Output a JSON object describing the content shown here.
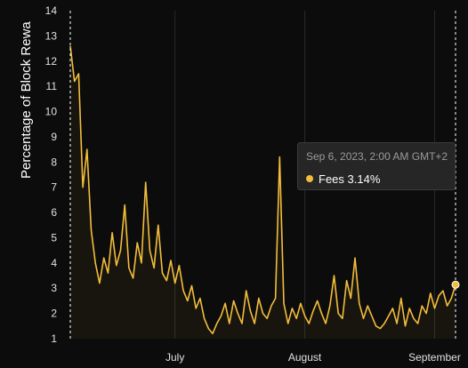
{
  "chart_data": {
    "type": "line",
    "title": "",
    "ylabel": "Percentage of Block Rewa",
    "xlabel": "",
    "ylim": [
      1,
      14
    ],
    "y_ticks": [
      "1",
      "2",
      "3",
      "4",
      "5",
      "6",
      "7",
      "8",
      "9",
      "10",
      "11",
      "12",
      "13",
      "14"
    ],
    "x_ticks": [
      {
        "label": "July",
        "date": "2023-07-01"
      },
      {
        "label": "August",
        "date": "2023-08-01"
      },
      {
        "label": "September",
        "date": "2023-09-01"
      }
    ],
    "x_range": [
      "2023-06-06",
      "2023-09-06"
    ],
    "grid": "vertical",
    "series": [
      {
        "name": "Fees",
        "color": "#f3bd3b",
        "points": [
          [
            "2023-06-06",
            12.6
          ],
          [
            "2023-06-07",
            11.2
          ],
          [
            "2023-06-08",
            11.5
          ],
          [
            "2023-06-09",
            7.0
          ],
          [
            "2023-06-10",
            8.5
          ],
          [
            "2023-06-11",
            5.3
          ],
          [
            "2023-06-12",
            4.0
          ],
          [
            "2023-06-13",
            3.2
          ],
          [
            "2023-06-14",
            4.2
          ],
          [
            "2023-06-15",
            3.6
          ],
          [
            "2023-06-16",
            5.2
          ],
          [
            "2023-06-17",
            3.9
          ],
          [
            "2023-06-18",
            4.5
          ],
          [
            "2023-06-19",
            6.3
          ],
          [
            "2023-06-20",
            3.8
          ],
          [
            "2023-06-21",
            3.4
          ],
          [
            "2023-06-22",
            4.8
          ],
          [
            "2023-06-23",
            4.0
          ],
          [
            "2023-06-24",
            7.2
          ],
          [
            "2023-06-25",
            4.5
          ],
          [
            "2023-06-26",
            3.8
          ],
          [
            "2023-06-27",
            5.5
          ],
          [
            "2023-06-28",
            3.6
          ],
          [
            "2023-06-29",
            3.3
          ],
          [
            "2023-06-30",
            4.1
          ],
          [
            "2023-07-01",
            3.2
          ],
          [
            "2023-07-02",
            3.9
          ],
          [
            "2023-07-03",
            2.9
          ],
          [
            "2023-07-04",
            2.5
          ],
          [
            "2023-07-05",
            3.1
          ],
          [
            "2023-07-06",
            2.2
          ],
          [
            "2023-07-07",
            2.6
          ],
          [
            "2023-07-08",
            1.8
          ],
          [
            "2023-07-09",
            1.4
          ],
          [
            "2023-07-10",
            1.2
          ],
          [
            "2023-07-11",
            1.6
          ],
          [
            "2023-07-12",
            1.9
          ],
          [
            "2023-07-13",
            2.4
          ],
          [
            "2023-07-14",
            1.6
          ],
          [
            "2023-07-15",
            2.5
          ],
          [
            "2023-07-16",
            2.0
          ],
          [
            "2023-07-17",
            1.6
          ],
          [
            "2023-07-18",
            2.9
          ],
          [
            "2023-07-19",
            2.1
          ],
          [
            "2023-07-20",
            1.6
          ],
          [
            "2023-07-21",
            2.6
          ],
          [
            "2023-07-22",
            2.0
          ],
          [
            "2023-07-23",
            1.8
          ],
          [
            "2023-07-24",
            2.3
          ],
          [
            "2023-07-25",
            2.6
          ],
          [
            "2023-07-26",
            8.2
          ],
          [
            "2023-07-27",
            2.4
          ],
          [
            "2023-07-28",
            1.6
          ],
          [
            "2023-07-29",
            2.2
          ],
          [
            "2023-07-30",
            1.8
          ],
          [
            "2023-07-31",
            2.4
          ],
          [
            "2023-08-01",
            1.9
          ],
          [
            "2023-08-02",
            1.6
          ],
          [
            "2023-08-03",
            2.1
          ],
          [
            "2023-08-04",
            2.5
          ],
          [
            "2023-08-05",
            2.0
          ],
          [
            "2023-08-06",
            1.6
          ],
          [
            "2023-08-07",
            2.3
          ],
          [
            "2023-08-08",
            3.5
          ],
          [
            "2023-08-09",
            2.0
          ],
          [
            "2023-08-10",
            1.8
          ],
          [
            "2023-08-11",
            3.3
          ],
          [
            "2023-08-12",
            2.6
          ],
          [
            "2023-08-13",
            4.2
          ],
          [
            "2023-08-14",
            2.4
          ],
          [
            "2023-08-15",
            1.8
          ],
          [
            "2023-08-16",
            2.3
          ],
          [
            "2023-08-17",
            1.9
          ],
          [
            "2023-08-18",
            1.5
          ],
          [
            "2023-08-19",
            1.4
          ],
          [
            "2023-08-20",
            1.6
          ],
          [
            "2023-08-21",
            1.9
          ],
          [
            "2023-08-22",
            2.2
          ],
          [
            "2023-08-23",
            1.6
          ],
          [
            "2023-08-24",
            2.6
          ],
          [
            "2023-08-25",
            1.5
          ],
          [
            "2023-08-26",
            2.2
          ],
          [
            "2023-08-27",
            1.8
          ],
          [
            "2023-08-28",
            1.6
          ],
          [
            "2023-08-29",
            2.3
          ],
          [
            "2023-08-30",
            2.0
          ],
          [
            "2023-08-31",
            2.8
          ],
          [
            "2023-09-01",
            2.2
          ],
          [
            "2023-09-02",
            2.7
          ],
          [
            "2023-09-03",
            2.9
          ],
          [
            "2023-09-04",
            2.3
          ],
          [
            "2023-09-05",
            2.6
          ],
          [
            "2023-09-06",
            3.14
          ]
        ]
      }
    ],
    "tooltip": {
      "date": "Sep 6, 2023, 2:00 AM GMT+2",
      "series": "Fees",
      "value": "3.14%"
    }
  }
}
